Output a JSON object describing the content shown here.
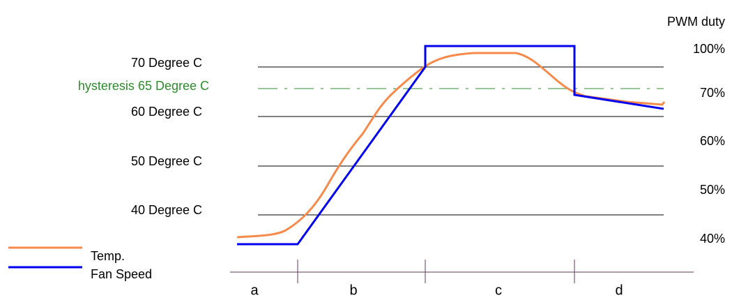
{
  "axis_title_right": "PWM duty",
  "left_labels": [
    "70 Degree C",
    "60 Degree C",
    "50 Degree C",
    "40 Degree C"
  ],
  "hysteresis_label": "hysteresis 65 Degree C",
  "right_labels": [
    "100%",
    "70%",
    "60%",
    "50%",
    "40%"
  ],
  "legend": [
    "Temp.",
    "Fan Speed"
  ],
  "phases": [
    "a",
    "b",
    "c",
    "d"
  ]
}
